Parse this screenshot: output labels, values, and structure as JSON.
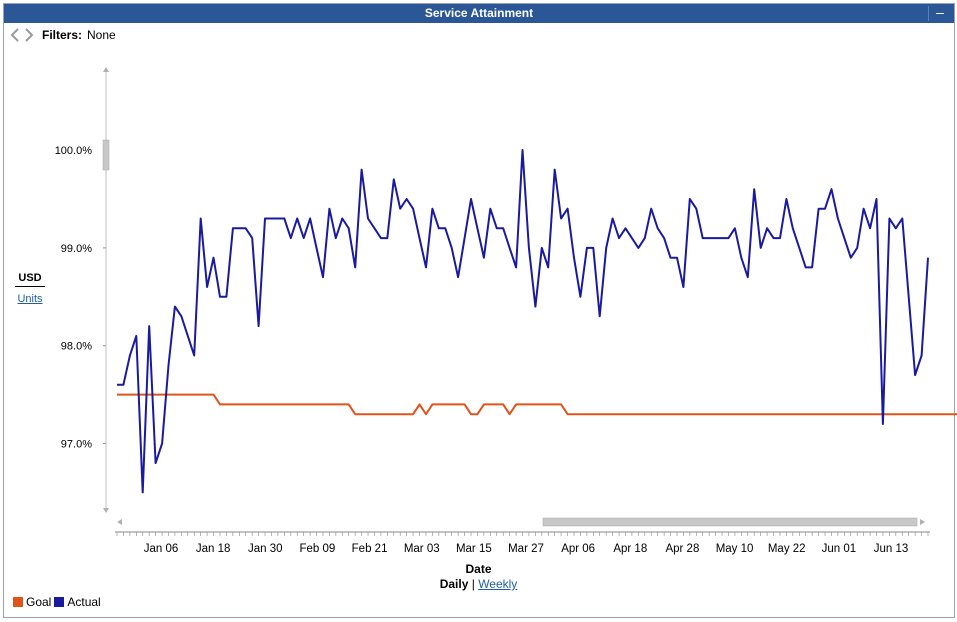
{
  "window": {
    "title": "Service Attainment",
    "minimize_glyph": "–"
  },
  "filters": {
    "label": "Filters:",
    "value": "None"
  },
  "y_units": {
    "active": "USD",
    "alternate": "Units"
  },
  "x_axis": {
    "title": "Date",
    "granularity_active": "Daily",
    "granularity_separator": "|",
    "granularity_alternate": "Weekly"
  },
  "legend": [
    {
      "label": "Goal",
      "color": "#e0531a"
    },
    {
      "label": "Actual",
      "color": "#1a1aa0"
    }
  ],
  "colors": {
    "titlebar": "#2b5797",
    "goal": "#e0531a",
    "actual": "#1a1aa0"
  },
  "chart_data": {
    "type": "line",
    "ylim": [
      96.3,
      100.9
    ],
    "y_ticks": [
      97.0,
      98.0,
      99.0,
      100.0
    ],
    "y_tick_labels": [
      "97.0%",
      "98.0%",
      "99.0%",
      "100.0%"
    ],
    "x_tick_labels": [
      "Jan 06",
      "Jan 18",
      "Jan 30",
      "Feb 09",
      "Feb 21",
      "Mar 03",
      "Mar 15",
      "Mar 27",
      "Apr 06",
      "Apr 18",
      "Apr 28",
      "May 10",
      "May 22",
      "Jun 01",
      "Jun 13"
    ],
    "xlabel": "Date",
    "ylabel": "USD",
    "series": [
      {
        "name": "Goal",
        "color": "#e0531a",
        "values": [
          97.5,
          97.5,
          97.5,
          97.5,
          97.5,
          97.5,
          97.5,
          97.5,
          97.5,
          97.5,
          97.5,
          97.5,
          97.5,
          97.5,
          97.5,
          97.5,
          97.4,
          97.4,
          97.4,
          97.4,
          97.4,
          97.4,
          97.4,
          97.4,
          97.4,
          97.4,
          97.4,
          97.4,
          97.4,
          97.4,
          97.4,
          97.4,
          97.4,
          97.4,
          97.4,
          97.4,
          97.4,
          97.3,
          97.3,
          97.3,
          97.3,
          97.3,
          97.3,
          97.3,
          97.3,
          97.3,
          97.3,
          97.4,
          97.3,
          97.4,
          97.4,
          97.4,
          97.4,
          97.4,
          97.4,
          97.3,
          97.3,
          97.4,
          97.4,
          97.4,
          97.4,
          97.3,
          97.4,
          97.4,
          97.4,
          97.4,
          97.4,
          97.4,
          97.4,
          97.4,
          97.3,
          97.3,
          97.3,
          97.3,
          97.3,
          97.3,
          97.3,
          97.3,
          97.3,
          97.3,
          97.3,
          97.3,
          97.3,
          97.3,
          97.3,
          97.3,
          97.3,
          97.3,
          97.3,
          97.3,
          97.3,
          97.3,
          97.3,
          97.3,
          97.3,
          97.3,
          97.3,
          97.3,
          97.3,
          97.3,
          97.3,
          97.3,
          97.3,
          97.3,
          97.3,
          97.3,
          97.3,
          97.3,
          97.3,
          97.3,
          97.3,
          97.3,
          97.3,
          97.3,
          97.3,
          97.3,
          97.3,
          97.3,
          97.3,
          97.3,
          97.3,
          97.3,
          97.3,
          97.3,
          97.3,
          97.3,
          97.3,
          97.3,
          97.3,
          97.3,
          97.3,
          97.3,
          97.3,
          97.3,
          97.3,
          97.3,
          97.3,
          97.3
        ]
      },
      {
        "name": "Actual",
        "color": "#1a1aa0",
        "values": [
          97.6,
          97.6,
          97.9,
          98.1,
          96.5,
          98.2,
          96.8,
          97.0,
          97.8,
          98.4,
          98.3,
          98.1,
          97.9,
          99.3,
          98.6,
          98.9,
          98.5,
          98.5,
          99.2,
          99.2,
          99.2,
          99.1,
          98.2,
          99.3,
          99.3,
          99.3,
          99.3,
          99.1,
          99.3,
          99.1,
          99.3,
          99.0,
          98.7,
          99.4,
          99.1,
          99.3,
          99.2,
          98.8,
          99.8,
          99.3,
          99.2,
          99.1,
          99.1,
          99.7,
          99.4,
          99.5,
          99.4,
          99.1,
          98.8,
          99.4,
          99.2,
          99.2,
          99.0,
          98.7,
          99.1,
          99.5,
          99.2,
          98.9,
          99.4,
          99.2,
          99.2,
          99.0,
          98.8,
          100.0,
          99.0,
          98.4,
          99.0,
          98.8,
          99.8,
          99.3,
          99.4,
          98.9,
          98.5,
          99.0,
          99.0,
          98.3,
          99.0,
          99.3,
          99.1,
          99.2,
          99.1,
          99.0,
          99.1,
          99.4,
          99.2,
          99.1,
          98.9,
          98.9,
          98.6,
          99.5,
          99.4,
          99.1,
          99.1,
          99.1,
          99.1,
          99.1,
          99.2,
          98.9,
          98.7,
          99.6,
          99.0,
          99.2,
          99.1,
          99.1,
          99.5,
          99.2,
          99.0,
          98.8,
          98.8,
          99.4,
          99.4,
          99.6,
          99.3,
          99.1,
          98.9,
          99.0,
          99.4,
          99.2,
          99.5,
          97.2,
          99.3,
          99.2,
          99.3,
          98.5,
          97.7,
          97.9,
          98.9
        ]
      }
    ]
  }
}
